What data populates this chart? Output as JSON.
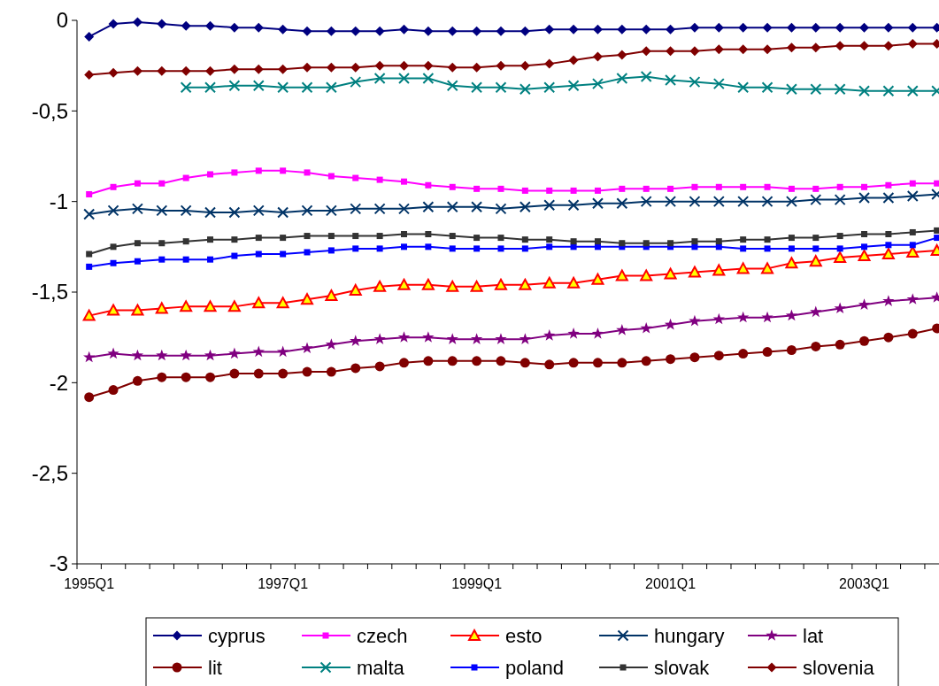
{
  "chart_data": {
    "type": "line",
    "categories": [
      "1995Q1",
      null,
      null,
      null,
      null,
      null,
      null,
      null,
      "1997Q1",
      null,
      null,
      null,
      null,
      null,
      null,
      null,
      "1999Q1",
      null,
      null,
      null,
      null,
      null,
      null,
      null,
      "2001Q1",
      null,
      null,
      null,
      null,
      null,
      null,
      null,
      "2003Q1",
      null,
      null,
      null
    ],
    "ylim": [
      -3,
      0
    ],
    "yticks": [
      {
        "value": -3,
        "label": "-3"
      },
      {
        "value": -2.5,
        "label": "-2,5"
      },
      {
        "value": -2,
        "label": "-2"
      },
      {
        "value": -1.5,
        "label": "-1,5"
      },
      {
        "value": -1,
        "label": "-1"
      },
      {
        "value": -0.5,
        "label": "-0,5"
      },
      {
        "value": 0,
        "label": "0"
      }
    ],
    "grid": false,
    "legend": "bottom",
    "series": [
      {
        "name": "cyprus",
        "color": "#000080",
        "marker": "diamond",
        "values": [
          -0.09,
          -0.02,
          -0.01,
          -0.02,
          -0.03,
          -0.03,
          -0.04,
          -0.04,
          -0.05,
          -0.06,
          -0.06,
          -0.06,
          -0.06,
          -0.05,
          -0.06,
          -0.06,
          -0.06,
          -0.06,
          -0.06,
          -0.05,
          -0.05,
          -0.05,
          -0.05,
          -0.05,
          -0.05,
          -0.04,
          -0.04,
          -0.04,
          -0.04,
          -0.04,
          -0.04,
          -0.04,
          -0.04,
          -0.04,
          -0.04,
          -0.04
        ]
      },
      {
        "name": "czech",
        "color": "#ff00ff",
        "marker": "square",
        "values": [
          -0.96,
          -0.92,
          -0.9,
          -0.9,
          -0.87,
          -0.85,
          -0.84,
          -0.83,
          -0.83,
          -0.84,
          -0.86,
          -0.87,
          -0.88,
          -0.89,
          -0.91,
          -0.92,
          -0.93,
          -0.93,
          -0.94,
          -0.94,
          -0.94,
          -0.94,
          -0.93,
          -0.93,
          -0.93,
          -0.92,
          -0.92,
          -0.92,
          -0.92,
          -0.93,
          -0.93,
          -0.92,
          -0.92,
          -0.91,
          -0.9,
          -0.9
        ]
      },
      {
        "name": "esto",
        "color": "#ff0000",
        "marker": "triangle",
        "values": [
          -1.63,
          -1.6,
          -1.6,
          -1.59,
          -1.58,
          -1.58,
          -1.58,
          -1.56,
          -1.56,
          -1.54,
          -1.52,
          -1.49,
          -1.47,
          -1.46,
          -1.46,
          -1.47,
          -1.47,
          -1.46,
          -1.46,
          -1.45,
          -1.45,
          -1.43,
          -1.41,
          -1.41,
          -1.4,
          -1.39,
          -1.38,
          -1.37,
          -1.37,
          -1.34,
          -1.33,
          -1.31,
          -1.3,
          -1.29,
          -1.28,
          -1.27
        ]
      },
      {
        "name": "hungary",
        "color": "#003366",
        "marker": "cross",
        "values": [
          -1.07,
          -1.05,
          -1.04,
          -1.05,
          -1.05,
          -1.06,
          -1.06,
          -1.05,
          -1.06,
          -1.05,
          -1.05,
          -1.04,
          -1.04,
          -1.04,
          -1.03,
          -1.03,
          -1.03,
          -1.04,
          -1.03,
          -1.02,
          -1.02,
          -1.01,
          -1.01,
          -1.0,
          -1.0,
          -1.0,
          -1.0,
          -1.0,
          -1.0,
          -1.0,
          -0.99,
          -0.99,
          -0.98,
          -0.98,
          -0.97,
          -0.96
        ]
      },
      {
        "name": "lat",
        "color": "#800080",
        "marker": "star",
        "values": [
          -1.86,
          -1.84,
          -1.85,
          -1.85,
          -1.85,
          -1.85,
          -1.84,
          -1.83,
          -1.83,
          -1.81,
          -1.79,
          -1.77,
          -1.76,
          -1.75,
          -1.75,
          -1.76,
          -1.76,
          -1.76,
          -1.76,
          -1.74,
          -1.73,
          -1.73,
          -1.71,
          -1.7,
          -1.68,
          -1.66,
          -1.65,
          -1.64,
          -1.64,
          -1.63,
          -1.61,
          -1.59,
          -1.57,
          -1.55,
          -1.54,
          -1.53
        ]
      },
      {
        "name": "lit",
        "color": "#800000",
        "marker": "circle",
        "values": [
          -2.08,
          -2.04,
          -1.99,
          -1.97,
          -1.97,
          -1.97,
          -1.95,
          -1.95,
          -1.95,
          -1.94,
          -1.94,
          -1.92,
          -1.91,
          -1.89,
          -1.88,
          -1.88,
          -1.88,
          -1.88,
          -1.89,
          -1.9,
          -1.89,
          -1.89,
          -1.89,
          -1.88,
          -1.87,
          -1.86,
          -1.85,
          -1.84,
          -1.83,
          -1.82,
          -1.8,
          -1.79,
          -1.77,
          -1.75,
          -1.73,
          -1.7
        ]
      },
      {
        "name": "malta",
        "color": "#008080",
        "marker": "cross",
        "values": [
          null,
          null,
          null,
          null,
          -0.37,
          -0.37,
          -0.36,
          -0.36,
          -0.37,
          -0.37,
          -0.37,
          -0.34,
          -0.32,
          -0.32,
          -0.32,
          -0.36,
          -0.37,
          -0.37,
          -0.38,
          -0.37,
          -0.36,
          -0.35,
          -0.32,
          -0.31,
          -0.33,
          -0.34,
          -0.35,
          -0.37,
          -0.37,
          -0.38,
          -0.38,
          -0.38,
          -0.39,
          -0.39,
          -0.39,
          -0.39
        ]
      },
      {
        "name": "poland",
        "color": "#0000ff",
        "marker": "square",
        "values": [
          -1.36,
          -1.34,
          -1.33,
          -1.32,
          -1.32,
          -1.32,
          -1.3,
          -1.29,
          -1.29,
          -1.28,
          -1.27,
          -1.26,
          -1.26,
          -1.25,
          -1.25,
          -1.26,
          -1.26,
          -1.26,
          -1.26,
          -1.25,
          -1.25,
          -1.25,
          -1.25,
          -1.25,
          -1.25,
          -1.25,
          -1.25,
          -1.26,
          -1.26,
          -1.26,
          -1.26,
          -1.26,
          -1.25,
          -1.24,
          -1.24,
          -1.2
        ]
      },
      {
        "name": "slovak",
        "color": "#333333",
        "marker": "square",
        "values": [
          -1.29,
          -1.25,
          -1.23,
          -1.23,
          -1.22,
          -1.21,
          -1.21,
          -1.2,
          -1.2,
          -1.19,
          -1.19,
          -1.19,
          -1.19,
          -1.18,
          -1.18,
          -1.19,
          -1.2,
          -1.2,
          -1.21,
          -1.21,
          -1.22,
          -1.22,
          -1.23,
          -1.23,
          -1.23,
          -1.22,
          -1.22,
          -1.21,
          -1.21,
          -1.2,
          -1.2,
          -1.19,
          -1.18,
          -1.18,
          -1.17,
          -1.16
        ]
      },
      {
        "name": "slovenia",
        "color": "#800000",
        "marker": "diamond",
        "values": [
          -0.3,
          -0.29,
          -0.28,
          -0.28,
          -0.28,
          -0.28,
          -0.27,
          -0.27,
          -0.27,
          -0.26,
          -0.26,
          -0.26,
          -0.25,
          -0.25,
          -0.25,
          -0.26,
          -0.26,
          -0.25,
          -0.25,
          -0.24,
          -0.22,
          -0.2,
          -0.19,
          -0.17,
          -0.17,
          -0.17,
          -0.16,
          -0.16,
          -0.16,
          -0.15,
          -0.15,
          -0.14,
          -0.14,
          -0.14,
          -0.13,
          -0.13
        ]
      }
    ]
  }
}
